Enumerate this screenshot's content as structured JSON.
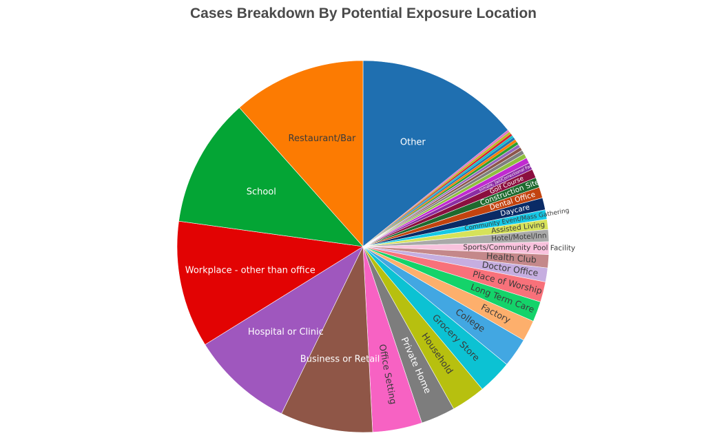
{
  "chart_data": {
    "type": "pie",
    "title": "Cases Breakdown By Potential Exposure Location",
    "slices": [
      {
        "label": "Other",
        "value": 12.9,
        "color": "#1f6fb0",
        "text_color": "#ffffff"
      },
      {
        "label": "",
        "value": 0.18,
        "color": "#e377c2",
        "text_color": "#ffffff"
      },
      {
        "label": "",
        "value": 0.18,
        "color": "#bcbd22",
        "text_color": "#ffffff"
      },
      {
        "label": "",
        "value": 0.18,
        "color": "#d62728",
        "text_color": "#ffffff"
      },
      {
        "label": "",
        "value": 0.18,
        "color": "#17becf",
        "text_color": "#ffffff"
      },
      {
        "label": "",
        "value": 0.2,
        "color": "#1f77b4",
        "text_color": "#ffffff"
      },
      {
        "label": "",
        "value": 0.22,
        "color": "#ff7f0e",
        "text_color": "#ffffff"
      },
      {
        "label": "",
        "value": 0.24,
        "color": "#2ca02c",
        "text_color": "#ffffff"
      },
      {
        "label": "",
        "value": 0.26,
        "color": "#9467bd",
        "text_color": "#ffffff"
      },
      {
        "label": "",
        "value": 0.28,
        "color": "#8c564b",
        "text_color": "#ffffff"
      },
      {
        "label": "",
        "value": 0.32,
        "color": "#7f7f7f",
        "text_color": "#ffffff"
      },
      {
        "label": "",
        "value": 0.36,
        "color": "#8fbf3f",
        "text_color": "#ffffff"
      },
      {
        "label": "",
        "value": 0.45,
        "color": "#c02ad0",
        "text_color": "#ffffff"
      },
      {
        "label": "Inmate, Jail/Correctional Facility",
        "value": 0.55,
        "color": "#8c2da3",
        "text_color": "#ffffff"
      },
      {
        "label": "Golf Course",
        "value": 0.7,
        "color": "#8b0f3f",
        "text_color": "#ffffff"
      },
      {
        "label": "Construction Site",
        "value": 0.8,
        "color": "#1e6a2e",
        "text_color": "#ffffff"
      },
      {
        "label": "Dental Office",
        "value": 0.85,
        "color": "#c2430f",
        "text_color": "#ffffff"
      },
      {
        "label": "Daycare",
        "value": 0.95,
        "color": "#0a2b66",
        "text_color": "#ffffff"
      },
      {
        "label": "Community Event/Mass Gathering",
        "value": 0.75,
        "color": "#14c8e6",
        "text_color": "#3a3a3a"
      },
      {
        "label": "Assisted Living",
        "value": 0.8,
        "color": "#d6e25a",
        "text_color": "#3a3a3a"
      },
      {
        "label": "Hotel/Motel/Inn",
        "value": 0.95,
        "color": "#a9a9a9",
        "text_color": "#3a3a3a"
      },
      {
        "label": "Sports/Community Pool Facility",
        "value": 1.0,
        "color": "#f9c2dd",
        "text_color": "#3a3a3a"
      },
      {
        "label": "Health Club",
        "value": 1.05,
        "color": "#c4888a",
        "text_color": "#3a3a3a"
      },
      {
        "label": "Doctor Office",
        "value": 1.1,
        "color": "#c6aee0",
        "text_color": "#3a3a3a"
      },
      {
        "label": "Place of Worship",
        "value": 1.6,
        "color": "#f8717a",
        "text_color": "#3a3a3a"
      },
      {
        "label": "Long Term Care",
        "value": 1.6,
        "color": "#14d36a",
        "text_color": "#3a3a3a"
      },
      {
        "label": "Factory",
        "value": 1.65,
        "color": "#fdaf6c",
        "text_color": "#3a3a3a"
      },
      {
        "label": "College",
        "value": 2.3,
        "color": "#42a7e2",
        "text_color": "#3a3a3a"
      },
      {
        "label": "Grocery Store",
        "value": 2.7,
        "color": "#0cc2d3",
        "text_color": "#3a3a3a"
      },
      {
        "label": "Household",
        "value": 2.7,
        "color": "#b7c00f",
        "text_color": "#3a3a3a"
      },
      {
        "label": "Private Home",
        "value": 2.7,
        "color": "#7d7d7d",
        "text_color": "#ffffff"
      },
      {
        "label": "Office Setting",
        "value": 3.9,
        "color": "#f762c3",
        "text_color": "#3a3a3a"
      },
      {
        "label": "Business or Retail",
        "value": 7.3,
        "color": "#8f5647",
        "text_color": "#ffffff"
      },
      {
        "label": "Hospital or Clinic",
        "value": 8.1,
        "color": "#9f57be",
        "text_color": "#ffffff"
      },
      {
        "label": "Workplace - other than office",
        "value": 10.0,
        "color": "#e20303",
        "text_color": "#ffffff"
      },
      {
        "label": "School",
        "value": 10.2,
        "color": "#04a535",
        "text_color": "#ffffff"
      },
      {
        "label": "Restaurant/Bar",
        "value": 10.5,
        "color": "#fc7b02",
        "text_color": "#3a3a3a"
      }
    ]
  }
}
